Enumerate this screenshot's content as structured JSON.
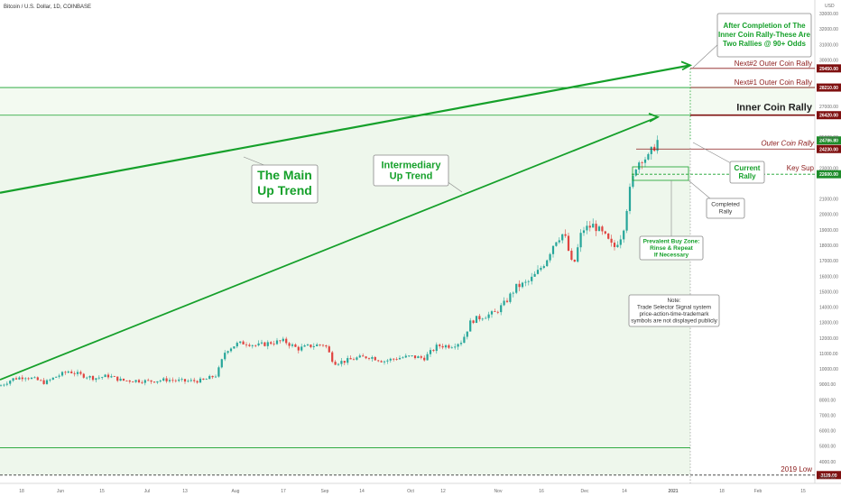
{
  "header": {
    "title": "Bitcoin / U.S. Dollar, 1D, COINBASE"
  },
  "chart_data": {
    "type": "candlestick",
    "ylim": [
      2700,
      33500
    ],
    "y_axis_label": "USD",
    "y_ticks": [
      3000,
      4000,
      5000,
      6000,
      7000,
      8000,
      9000,
      10000,
      11000,
      12000,
      13000,
      14000,
      15000,
      16000,
      17000,
      18000,
      19000,
      20000,
      21000,
      22000,
      23000,
      24000,
      25000,
      26000,
      27000,
      28000,
      29000,
      30000,
      31000,
      32000,
      33000
    ],
    "x_ticks": [
      "18",
      "Jun",
      "15",
      "Jul",
      "13",
      "Aug",
      "17",
      "Sep",
      "14",
      "Oct",
      "12",
      "Nov",
      "16",
      "Dec",
      "14",
      "2021",
      "18",
      "Feb",
      "15"
    ],
    "levels": [
      {
        "name": "Next#2 Outer Coin Rally",
        "value": 29450,
        "badge": "29450.00",
        "style": "thin-red"
      },
      {
        "name": "Next#1 Outer Coin Rally",
        "value": 28210,
        "badge": "28210.00",
        "style": "thin-red"
      },
      {
        "name": "Inner Coin Rally",
        "value": 26420,
        "badge": "26420.00",
        "style": "bold-red"
      },
      {
        "name": "Outer Coin Rally",
        "value": 24230,
        "badge": "24230.00",
        "style": "thin-red-italic"
      },
      {
        "name": "Key Sup",
        "value": 22600,
        "badge": "22600.00",
        "style": "green-dashed"
      },
      {
        "name": "2019 Low",
        "value": 3129,
        "badge": "3129.00",
        "style": "dark-dashed"
      }
    ],
    "current_price": {
      "value": 24786,
      "badge": "24786.80"
    },
    "green_band_lines": [
      28210,
      26420,
      4900
    ],
    "trend_lines": [
      {
        "name": "The Main Up Trend",
        "start": [
          0,
          21400
        ],
        "end": [
          765,
          29650
        ]
      },
      {
        "name": "Intermediary Up Trend",
        "start": [
          0,
          9300
        ],
        "end": [
          729,
          26300
        ]
      }
    ],
    "price_path": [
      [
        0,
        8900
      ],
      [
        14,
        9350
      ],
      [
        28,
        9500
      ],
      [
        40,
        9300
      ],
      [
        50,
        9100
      ],
      [
        62,
        9500
      ],
      [
        76,
        9850
      ],
      [
        90,
        9600
      ],
      [
        105,
        9400
      ],
      [
        120,
        9550
      ],
      [
        135,
        9250
      ],
      [
        150,
        9250
      ],
      [
        165,
        9200
      ],
      [
        185,
        9300
      ],
      [
        205,
        9200
      ],
      [
        225,
        9250
      ],
      [
        240,
        9600
      ],
      [
        250,
        11200
      ],
      [
        262,
        11600
      ],
      [
        272,
        11700
      ],
      [
        285,
        11500
      ],
      [
        300,
        11700
      ],
      [
        315,
        11800
      ],
      [
        330,
        11300
      ],
      [
        345,
        11500
      ],
      [
        360,
        11600
      ],
      [
        370,
        10400
      ],
      [
        382,
        10500
      ],
      [
        395,
        10700
      ],
      [
        410,
        10800
      ],
      [
        425,
        10500
      ],
      [
        440,
        10700
      ],
      [
        455,
        10800
      ],
      [
        470,
        10700
      ],
      [
        485,
        11500
      ],
      [
        500,
        11500
      ],
      [
        512,
        11800
      ],
      [
        522,
        13100
      ],
      [
        535,
        13400
      ],
      [
        548,
        13600
      ],
      [
        560,
        14300
      ],
      [
        572,
        15300
      ],
      [
        585,
        15600
      ],
      [
        595,
        16200
      ],
      [
        605,
        17000
      ],
      [
        615,
        18300
      ],
      [
        625,
        18800
      ],
      [
        635,
        16500
      ],
      [
        645,
        19000
      ],
      [
        658,
        19300
      ],
      [
        670,
        18600
      ],
      [
        680,
        17800
      ],
      [
        690,
        18800
      ],
      [
        697,
        21300
      ],
      [
        705,
        23200
      ],
      [
        712,
        23700
      ],
      [
        718,
        23600
      ],
      [
        724,
        24300
      ],
      [
        729,
        24800
      ]
    ]
  },
  "annotations": {
    "main_trend": [
      "The Main",
      "Up Trend"
    ],
    "intermediary": [
      "Intermediary",
      "Up Trend"
    ],
    "top_note": [
      "After Completion of The",
      "Inner Coin Rally-These Are",
      "Two Rallies @ 90+ Odds"
    ],
    "current_rally": [
      "Current",
      "Rally"
    ],
    "completed_rally": [
      "Completed",
      "Rally"
    ],
    "buy_zone": [
      "Prevalent Buy Zone:",
      "Rinse & Repeat",
      "If Necessary"
    ],
    "note": [
      "Note:",
      "Trade Selector Signal system",
      "price-action-time-trademark",
      "symbols are not displayed publicly"
    ]
  },
  "colors": {
    "green": "#15a02a",
    "red_level": "#8b1a1a",
    "badge_red": "#7f1010",
    "badge_green": "#1e8c2a",
    "candle_up": "#26a69a",
    "candle_down": "#e0433f",
    "band": "#eef7ec"
  }
}
